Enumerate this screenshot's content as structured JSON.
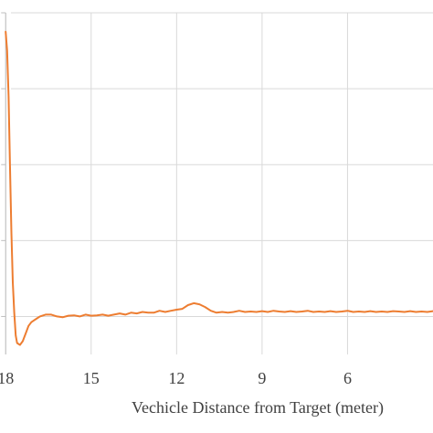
{
  "chart_data": {
    "type": "line",
    "title": "",
    "xlabel": "Vechicle Distance from Target (meter)",
    "ylabel": "",
    "x_reversed": true,
    "xlim": [
      18.2,
      3.0
    ],
    "ylim": [
      -1.0,
      8.0
    ],
    "x_ticks": [
      18,
      15,
      12,
      9,
      6
    ],
    "x_tick_labels": [
      "18",
      "15",
      "12",
      "9",
      "6"
    ],
    "y_gridlines": [
      0,
      2,
      4,
      6,
      8
    ],
    "grid": true,
    "line_color": "#ed7d31",
    "series": [
      {
        "x": [
          18.0,
          17.95,
          17.9,
          17.85,
          17.8,
          17.75,
          17.7,
          17.65,
          17.6,
          17.5,
          17.4,
          17.3,
          17.2,
          17.1,
          17.0,
          16.9,
          16.8,
          16.6,
          16.4,
          16.2,
          16.0,
          15.8,
          15.6,
          15.4,
          15.2,
          15.0,
          14.8,
          14.6,
          14.4,
          14.2,
          14.0,
          13.8,
          13.6,
          13.4,
          13.2,
          13.0,
          12.8,
          12.6,
          12.4,
          12.2,
          12.0,
          11.8,
          11.6,
          11.4,
          11.2,
          11.0,
          10.8,
          10.6,
          10.4,
          10.2,
          10.0,
          9.8,
          9.6,
          9.4,
          9.2,
          9.0,
          8.8,
          8.6,
          8.4,
          8.2,
          8.0,
          7.8,
          7.6,
          7.4,
          7.2,
          7.0,
          6.8,
          6.6,
          6.4,
          6.2,
          6.0,
          5.8,
          5.6,
          5.4,
          5.2,
          5.0,
          4.8,
          4.6,
          4.4,
          4.2,
          4.0,
          3.8,
          3.6,
          3.4,
          3.2,
          3.0
        ],
        "y": [
          7.5,
          7.0,
          5.8,
          4.0,
          2.2,
          0.9,
          0.1,
          -0.5,
          -0.7,
          -0.75,
          -0.65,
          -0.45,
          -0.25,
          -0.15,
          -0.1,
          -0.05,
          0.0,
          0.05,
          0.05,
          0.0,
          -0.02,
          0.02,
          0.03,
          0.0,
          0.05,
          0.02,
          0.03,
          0.05,
          0.02,
          0.05,
          0.08,
          0.05,
          0.1,
          0.08,
          0.12,
          0.1,
          0.1,
          0.15,
          0.12,
          0.15,
          0.18,
          0.2,
          0.3,
          0.35,
          0.32,
          0.25,
          0.15,
          0.1,
          0.12,
          0.1,
          0.12,
          0.15,
          0.12,
          0.13,
          0.12,
          0.14,
          0.12,
          0.15,
          0.13,
          0.12,
          0.14,
          0.12,
          0.13,
          0.15,
          0.12,
          0.13,
          0.12,
          0.14,
          0.12,
          0.13,
          0.15,
          0.12,
          0.13,
          0.12,
          0.14,
          0.12,
          0.13,
          0.12,
          0.14,
          0.13,
          0.12,
          0.14,
          0.12,
          0.13,
          0.12,
          0.14
        ]
      }
    ]
  }
}
